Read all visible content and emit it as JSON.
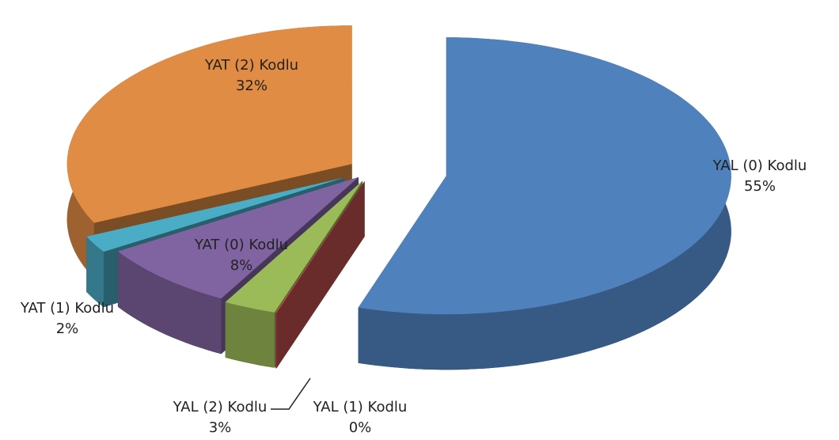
{
  "chart_data": {
    "type": "pie",
    "categories": [
      "YAL (0) Kodlu",
      "YAL (1) Kodlu",
      "YAL (2) Kodlu",
      "YAT (0) Kodlu",
      "YAT (1) Kodlu",
      "YAT (2) Kodlu"
    ],
    "values": [
      55,
      0,
      3,
      8,
      2,
      32
    ],
    "value_labels": [
      "55%",
      "0%",
      "3%",
      "8%",
      "2%",
      "32%"
    ],
    "colors": [
      "#4f81bd",
      "#c0504d",
      "#9bbb59",
      "#8064a2",
      "#4bacc6",
      "#e08c44"
    ]
  }
}
